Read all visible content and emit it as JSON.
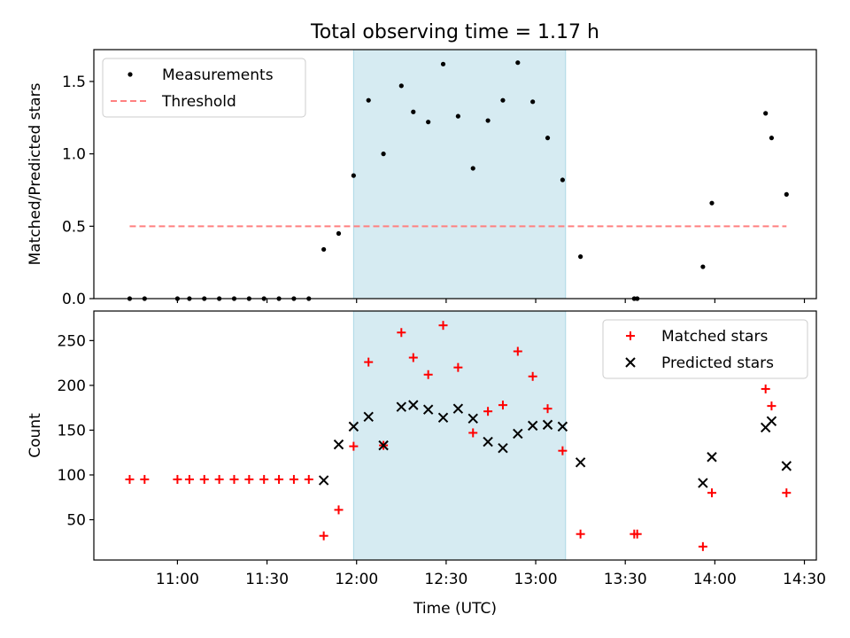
{
  "title": "Total observing time = 1.17 h",
  "colors": {
    "measurement": "#000000",
    "threshold": "#ff8080",
    "shade": "#add8e6",
    "matched": "#ff0000",
    "predicted": "#000000"
  },
  "chart_data": [
    {
      "type": "scatter",
      "title": "Total observing time = 1.17 h",
      "xlabel": "",
      "ylabel": "Matched/Predicted stars",
      "xlim": [
        "10:32",
        "14:34"
      ],
      "ylim": [
        0,
        1.72
      ],
      "yticks": [
        0.0,
        0.5,
        1.0,
        1.5
      ],
      "ytick_labels": [
        "0.0",
        "0.5",
        "1.0",
        "1.5"
      ],
      "xticks": [
        "11:00",
        "11:30",
        "12:00",
        "12:30",
        "13:00",
        "13:30",
        "14:00",
        "14:30"
      ],
      "shaded_span": [
        "11:59",
        "13:10"
      ],
      "legend": {
        "position": "upper-left",
        "entries": [
          "Measurements",
          "Threshold"
        ]
      },
      "threshold": {
        "name": "Threshold",
        "y": 0.5,
        "x_range": [
          "10:44",
          "14:24"
        ]
      },
      "series": [
        {
          "name": "Measurements",
          "points": [
            [
              "10:44",
              0
            ],
            [
              "10:49",
              0
            ],
            [
              "11:00",
              0
            ],
            [
              "11:04",
              0
            ],
            [
              "11:09",
              0
            ],
            [
              "11:14",
              0
            ],
            [
              "11:19",
              0
            ],
            [
              "11:24",
              0
            ],
            [
              "11:29",
              0
            ],
            [
              "11:34",
              0
            ],
            [
              "11:39",
              0
            ],
            [
              "11:44",
              0
            ],
            [
              "11:49",
              0.34
            ],
            [
              "11:54",
              0.45
            ],
            [
              "11:59",
              0.85
            ],
            [
              "12:04",
              1.37
            ],
            [
              "12:09",
              1.0
            ],
            [
              "12:15",
              1.47
            ],
            [
              "12:19",
              1.29
            ],
            [
              "12:24",
              1.22
            ],
            [
              "12:29",
              1.62
            ],
            [
              "12:34",
              1.26
            ],
            [
              "12:39",
              0.9
            ],
            [
              "12:44",
              1.23
            ],
            [
              "12:49",
              1.37
            ],
            [
              "12:54",
              1.63
            ],
            [
              "12:59",
              1.36
            ],
            [
              "13:04",
              1.11
            ],
            [
              "13:09",
              0.82
            ],
            [
              "13:15",
              0.29
            ],
            [
              "13:33",
              0
            ],
            [
              "13:34",
              0
            ],
            [
              "13:56",
              0.22
            ],
            [
              "13:59",
              0.66
            ],
            [
              "14:17",
              1.28
            ],
            [
              "14:19",
              1.11
            ],
            [
              "14:24",
              0.72
            ]
          ]
        }
      ]
    },
    {
      "type": "scatter",
      "title": "",
      "xlabel": "Time (UTC)",
      "ylabel": "Count",
      "xlim": [
        "10:32",
        "14:34"
      ],
      "ylim": [
        5,
        283
      ],
      "yticks": [
        50,
        100,
        150,
        200,
        250
      ],
      "ytick_labels": [
        "50",
        "100",
        "150",
        "200",
        "250"
      ],
      "xticks": [
        "11:00",
        "11:30",
        "12:00",
        "12:30",
        "13:00",
        "13:30",
        "14:00",
        "14:30"
      ],
      "xtick_labels": [
        "11:00",
        "11:30",
        "12:00",
        "12:30",
        "13:00",
        "13:30",
        "14:00",
        "14:30"
      ],
      "shaded_span": [
        "11:59",
        "13:10"
      ],
      "legend": {
        "position": "upper-right",
        "entries": [
          "Matched stars",
          "Predicted stars"
        ]
      },
      "series": [
        {
          "name": "Matched stars",
          "marker": "plus",
          "points": [
            [
              "10:44",
              95
            ],
            [
              "10:49",
              95
            ],
            [
              "11:00",
              95
            ],
            [
              "11:04",
              95
            ],
            [
              "11:09",
              95
            ],
            [
              "11:14",
              95
            ],
            [
              "11:19",
              95
            ],
            [
              "11:24",
              95
            ],
            [
              "11:29",
              95
            ],
            [
              "11:34",
              95
            ],
            [
              "11:39",
              95
            ],
            [
              "11:44",
              95
            ],
            [
              "11:49",
              32
            ],
            [
              "11:54",
              61
            ],
            [
              "11:59",
              132
            ],
            [
              "12:04",
              226
            ],
            [
              "12:09",
              133
            ],
            [
              "12:15",
              259
            ],
            [
              "12:19",
              231
            ],
            [
              "12:24",
              212
            ],
            [
              "12:29",
              267
            ],
            [
              "12:34",
              220
            ],
            [
              "12:39",
              147
            ],
            [
              "12:44",
              171
            ],
            [
              "12:49",
              178
            ],
            [
              "12:54",
              238
            ],
            [
              "12:59",
              210
            ],
            [
              "13:04",
              174
            ],
            [
              "13:09",
              127
            ],
            [
              "13:15",
              34
            ],
            [
              "13:33",
              34
            ],
            [
              "13:34",
              34
            ],
            [
              "13:56",
              20
            ],
            [
              "13:59",
              80
            ],
            [
              "14:17",
              196
            ],
            [
              "14:19",
              177
            ],
            [
              "14:24",
              80
            ]
          ]
        },
        {
          "name": "Predicted stars",
          "marker": "x",
          "points": [
            [
              "11:49",
              94
            ],
            [
              "11:54",
              134
            ],
            [
              "11:59",
              154
            ],
            [
              "12:04",
              165
            ],
            [
              "12:09",
              133
            ],
            [
              "12:15",
              176
            ],
            [
              "12:19",
              178
            ],
            [
              "12:24",
              173
            ],
            [
              "12:29",
              164
            ],
            [
              "12:34",
              174
            ],
            [
              "12:39",
              163
            ],
            [
              "12:44",
              137
            ],
            [
              "12:49",
              130
            ],
            [
              "12:54",
              146
            ],
            [
              "12:59",
              155
            ],
            [
              "13:04",
              156
            ],
            [
              "13:09",
              154
            ],
            [
              "13:15",
              114
            ],
            [
              "13:56",
              91
            ],
            [
              "13:59",
              120
            ],
            [
              "14:17",
              153
            ],
            [
              "14:19",
              160
            ],
            [
              "14:24",
              110
            ]
          ]
        }
      ]
    }
  ]
}
